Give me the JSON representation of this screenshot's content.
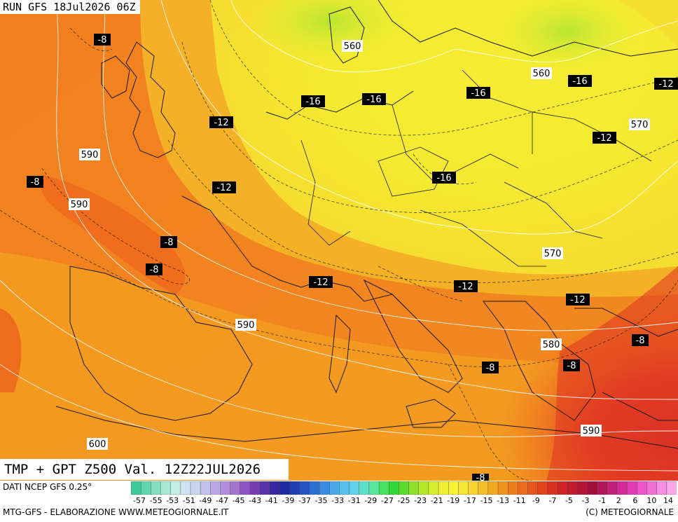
{
  "header": {
    "run": "RUN GFS 18Jul2026 06Z"
  },
  "map": {
    "title": "TMP + GPT Z500 Val. 12Z22JUL2026",
    "temp_labels": [
      "-8",
      "-8",
      "-8",
      "-8",
      "-8",
      "-8",
      "-8",
      "-8",
      "-12",
      "-12",
      "-12",
      "-12",
      "-12",
      "-12",
      "-12",
      "-16",
      "-16",
      "-16",
      "-16",
      "-16",
      "-12",
      "-8"
    ],
    "gpt_labels": [
      "560",
      "560",
      "570",
      "570",
      "580",
      "590",
      "590",
      "590",
      "590",
      "600"
    ]
  },
  "footer": {
    "source": "DATI NCEP GFS 0.25°",
    "credit": "MTG-GFS - ELABORAZIONE WWW.METEOGIORNALE.IT",
    "copyright": "(C) METEOGIORNALE"
  },
  "scale": {
    "ticks": [
      "-57",
      "-55",
      "-53",
      "-51",
      "-49",
      "-47",
      "-45",
      "-43",
      "-41",
      "-39",
      "-37",
      "-35",
      "-33",
      "-31",
      "-29",
      "-27",
      "-25",
      "-23",
      "-21",
      "-19",
      "-17",
      "-15",
      "-13",
      "-11",
      "-9",
      "-7",
      "-5",
      "-3",
      "-1",
      "2",
      "6",
      "10",
      "14"
    ],
    "colors": [
      "#3ec99a",
      "#5fd6ad",
      "#84dfc0",
      "#a8e8d4",
      "#c6efe4",
      "#cfe3f3",
      "#c7d4f0",
      "#c2c2ec",
      "#bba9e4",
      "#b28fdb",
      "#a373cf",
      "#9054c2",
      "#7a3bb2",
      "#5a32a8",
      "#3629a0",
      "#1d2ba0",
      "#1f3fb3",
      "#2455c4",
      "#2d70d3",
      "#3a8de0",
      "#4aa8e8",
      "#57c0ee",
      "#5fd2ea",
      "#5ee0c8",
      "#58e89c",
      "#48e060",
      "#33d637",
      "#5cd92e",
      "#8ce02b",
      "#b4e72c",
      "#d6ee2e",
      "#eef232",
      "#f6f336",
      "#f6e636",
      "#f5d430",
      "#f4c02a",
      "#f2a823",
      "#f0931e",
      "#ee7e1b",
      "#ec6a1c",
      "#e8561d",
      "#e2431f",
      "#d93222",
      "#cf2526",
      "#c21b2c",
      "#b31533",
      "#a1103d",
      "#b0185a",
      "#c2207a",
      "#d42b98",
      "#e23ab4",
      "#ec54c8",
      "#f270d6",
      "#f68de0",
      "#f9a9e8"
    ]
  }
}
